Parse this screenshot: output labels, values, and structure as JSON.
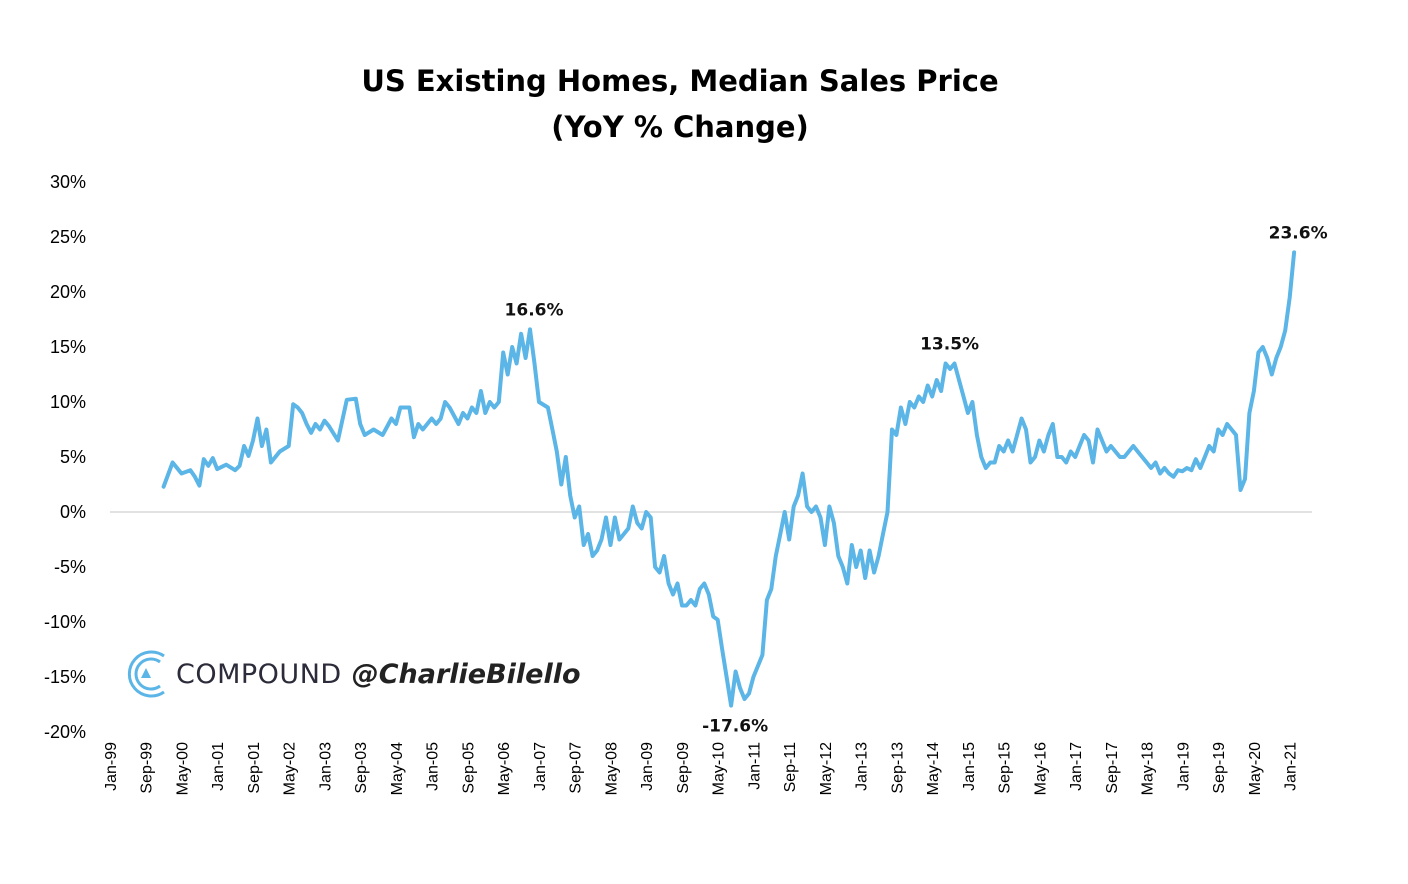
{
  "chart_data": {
    "type": "line",
    "title": "US Existing Homes, Median Sales Price",
    "subtitle": "(YoY % Change)",
    "ylim": [
      -20,
      30
    ],
    "yticks": [
      "30%",
      "25%",
      "20%",
      "15%",
      "10%",
      "5%",
      "0%",
      "-5%",
      "-10%",
      "-15%",
      "-20%"
    ],
    "ytick_values": [
      30,
      25,
      20,
      15,
      10,
      5,
      0,
      -5,
      -10,
      -15,
      -20
    ],
    "xticks": [
      "Jan-99",
      "Sep-99",
      "May-00",
      "Jan-01",
      "Sep-01",
      "May-02",
      "Jan-03",
      "Sep-03",
      "May-04",
      "Jan-05",
      "Sep-05",
      "May-06",
      "Jan-07",
      "Sep-07",
      "May-08",
      "Jan-09",
      "Sep-09",
      "May-10",
      "Jan-11",
      "Sep-11",
      "May-12",
      "Jan-13",
      "Sep-13",
      "May-14",
      "Jan-15",
      "Sep-15",
      "May-16",
      "Jan-17",
      "Sep-17",
      "May-18",
      "Jan-19",
      "Sep-19",
      "May-20",
      "Jan-21"
    ],
    "x_range": [
      "Jan-99",
      "Jun-21"
    ],
    "grid": false,
    "zero_line": true,
    "line_color": "#5bb5e6",
    "series": [
      {
        "points": [
          [
            "Jan-00",
            2.3
          ],
          [
            "Mar-00",
            4.5
          ],
          [
            "May-00",
            3.5
          ],
          [
            "Jul-00",
            3.8
          ],
          [
            "Aug-00",
            3.2
          ],
          [
            "Sep-00",
            2.4
          ],
          [
            "Oct-00",
            4.8
          ],
          [
            "Nov-00",
            4.2
          ],
          [
            "Dec-00",
            4.9
          ],
          [
            "Jan-01",
            3.9
          ],
          [
            "Mar-01",
            4.3
          ],
          [
            "May-01",
            3.8
          ],
          [
            "Jun-01",
            4.2
          ],
          [
            "Jul-01",
            6.0
          ],
          [
            "Aug-01",
            5.1
          ],
          [
            "Sep-01",
            6.5
          ],
          [
            "Oct-01",
            8.5
          ],
          [
            "Nov-01",
            6.0
          ],
          [
            "Dec-01",
            7.5
          ],
          [
            "Jan-02",
            4.5
          ],
          [
            "Mar-02",
            5.5
          ],
          [
            "May-02",
            6.0
          ],
          [
            "Jun-02",
            9.8
          ],
          [
            "Jul-02",
            9.5
          ],
          [
            "Aug-02",
            9.0
          ],
          [
            "Sep-02",
            8.0
          ],
          [
            "Oct-02",
            7.2
          ],
          [
            "Nov-02",
            8.0
          ],
          [
            "Dec-02",
            7.5
          ],
          [
            "Jan-03",
            8.3
          ],
          [
            "Feb-03",
            7.8
          ],
          [
            "Apr-03",
            6.5
          ],
          [
            "Jun-03",
            10.2
          ],
          [
            "Aug-03",
            10.3
          ],
          [
            "Sep-03",
            8.0
          ],
          [
            "Oct-03",
            7.0
          ],
          [
            "Dec-03",
            7.5
          ],
          [
            "Feb-04",
            7.0
          ],
          [
            "Apr-04",
            8.5
          ],
          [
            "May-04",
            8.0
          ],
          [
            "Jun-04",
            9.5
          ],
          [
            "Aug-04",
            9.5
          ],
          [
            "Sep-04",
            6.8
          ],
          [
            "Oct-04",
            8.0
          ],
          [
            "Nov-04",
            7.5
          ],
          [
            "Jan-05",
            8.5
          ],
          [
            "Feb-05",
            8.0
          ],
          [
            "Mar-05",
            8.5
          ],
          [
            "Apr-05",
            10.0
          ],
          [
            "May-05",
            9.5
          ],
          [
            "Jul-05",
            8.0
          ],
          [
            "Aug-05",
            9.0
          ],
          [
            "Sep-05",
            8.5
          ],
          [
            "Oct-05",
            9.5
          ],
          [
            "Nov-05",
            9.0
          ],
          [
            "Dec-05",
            11.0
          ],
          [
            "Jan-06",
            9.0
          ],
          [
            "Feb-06",
            10.0
          ],
          [
            "Mar-06",
            9.5
          ],
          [
            "Apr-06",
            10.0
          ],
          [
            "May-06",
            14.5
          ],
          [
            "Jun-06",
            12.5
          ],
          [
            "Jul-06",
            15.0
          ],
          [
            "Aug-06",
            13.5
          ],
          [
            "Sep-06",
            16.2
          ],
          [
            "Oct-06",
            14.0
          ],
          [
            "Nov-06",
            16.6
          ],
          [
            "Dec-06",
            13.5
          ],
          [
            "Jan-07",
            10.0
          ],
          [
            "Mar-07",
            9.5
          ],
          [
            "Apr-07",
            7.5
          ],
          [
            "May-07",
            5.5
          ],
          [
            "Jun-07",
            2.5
          ],
          [
            "Jul-07",
            5.0
          ],
          [
            "Aug-07",
            1.5
          ],
          [
            "Sep-07",
            -0.5
          ],
          [
            "Oct-07",
            0.5
          ],
          [
            "Nov-07",
            -3.0
          ],
          [
            "Dec-07",
            -2.0
          ],
          [
            "Jan-08",
            -4.0
          ],
          [
            "Feb-08",
            -3.5
          ],
          [
            "Mar-08",
            -2.5
          ],
          [
            "Apr-08",
            -0.5
          ],
          [
            "May-08",
            -3.0
          ],
          [
            "Jun-08",
            -0.5
          ],
          [
            "Jul-08",
            -2.5
          ],
          [
            "Aug-08",
            -2.0
          ],
          [
            "Sep-08",
            -1.5
          ],
          [
            "Oct-08",
            0.5
          ],
          [
            "Nov-08",
            -1.0
          ],
          [
            "Dec-08",
            -1.5
          ],
          [
            "Jan-09",
            0.0
          ],
          [
            "Feb-09",
            -0.5
          ],
          [
            "Mar-09",
            -5.0
          ],
          [
            "Apr-09",
            -5.5
          ],
          [
            "May-09",
            -4.0
          ],
          [
            "Jun-09",
            -6.5
          ],
          [
            "Jul-09",
            -7.5
          ],
          [
            "Aug-09",
            -6.5
          ],
          [
            "Sep-09",
            -8.5
          ],
          [
            "Oct-09",
            -8.5
          ],
          [
            "Nov-09",
            -8.0
          ],
          [
            "Dec-09",
            -8.5
          ],
          [
            "Jan-10",
            -7.0
          ],
          [
            "Feb-10",
            -6.5
          ],
          [
            "Mar-10",
            -7.5
          ],
          [
            "Apr-10",
            -9.5
          ],
          [
            "May-10",
            -9.8
          ],
          [
            "Jun-10",
            -12.5
          ],
          [
            "Jul-10",
            -15.0
          ],
          [
            "Aug-10",
            -17.6
          ],
          [
            "Sep-10",
            -14.5
          ],
          [
            "Oct-10",
            -16.0
          ],
          [
            "Nov-10",
            -17.0
          ],
          [
            "Dec-10",
            -16.5
          ],
          [
            "Jan-11",
            -15.0
          ],
          [
            "Feb-11",
            -14.0
          ],
          [
            "Mar-11",
            -13.0
          ],
          [
            "Apr-11",
            -8.0
          ],
          [
            "May-11",
            -7.0
          ],
          [
            "Jun-11",
            -4.0
          ],
          [
            "Jul-11",
            -2.0
          ],
          [
            "Aug-11",
            0.0
          ],
          [
            "Sep-11",
            -2.5
          ],
          [
            "Oct-11",
            0.5
          ],
          [
            "Nov-11",
            1.5
          ],
          [
            "Dec-11",
            3.5
          ],
          [
            "Jan-12",
            0.5
          ],
          [
            "Feb-12",
            0.0
          ],
          [
            "Mar-12",
            0.5
          ],
          [
            "Apr-12",
            -0.5
          ],
          [
            "May-12",
            -3.0
          ],
          [
            "Jun-12",
            0.5
          ],
          [
            "Jul-12",
            -1.0
          ],
          [
            "Aug-12",
            -4.0
          ],
          [
            "Sep-12",
            -5.0
          ],
          [
            "Oct-12",
            -6.5
          ],
          [
            "Nov-12",
            -3.0
          ],
          [
            "Dec-12",
            -5.0
          ],
          [
            "Jan-13",
            -3.5
          ],
          [
            "Feb-13",
            -6.0
          ],
          [
            "Mar-13",
            -3.5
          ],
          [
            "Apr-13",
            -5.5
          ],
          [
            "May-13",
            -4.0
          ],
          [
            "Jun-13",
            -2.0
          ],
          [
            "Jul-13",
            0.0
          ],
          [
            "Aug-13",
            7.5
          ],
          [
            "Sep-13",
            7.0
          ],
          [
            "Oct-13",
            9.5
          ],
          [
            "Nov-13",
            8.0
          ],
          [
            "Dec-13",
            10.0
          ],
          [
            "Jan-14",
            9.5
          ],
          [
            "Feb-14",
            10.5
          ],
          [
            "Mar-14",
            10.0
          ],
          [
            "Apr-14",
            11.5
          ],
          [
            "May-14",
            10.5
          ],
          [
            "Jun-14",
            12.0
          ],
          [
            "Jul-14",
            11.0
          ],
          [
            "Aug-14",
            13.5
          ],
          [
            "Sep-14",
            13.0
          ],
          [
            "Oct-14",
            13.5
          ],
          [
            "Nov-14",
            12.0
          ],
          [
            "Dec-14",
            10.5
          ],
          [
            "Jan-15",
            9.0
          ],
          [
            "Feb-15",
            10.0
          ],
          [
            "Mar-15",
            7.0
          ],
          [
            "Apr-15",
            5.0
          ],
          [
            "May-15",
            4.0
          ],
          [
            "Jun-15",
            4.5
          ],
          [
            "Jul-15",
            4.5
          ],
          [
            "Aug-15",
            6.0
          ],
          [
            "Sep-15",
            5.5
          ],
          [
            "Oct-15",
            6.5
          ],
          [
            "Nov-15",
            5.5
          ],
          [
            "Dec-15",
            7.0
          ],
          [
            "Jan-16",
            8.5
          ],
          [
            "Feb-16",
            7.5
          ],
          [
            "Mar-16",
            4.5
          ],
          [
            "Apr-16",
            5.0
          ],
          [
            "May-16",
            6.5
          ],
          [
            "Jun-16",
            5.5
          ],
          [
            "Jul-16",
            7.0
          ],
          [
            "Aug-16",
            8.0
          ],
          [
            "Sep-16",
            5.0
          ],
          [
            "Oct-16",
            5.0
          ],
          [
            "Nov-16",
            4.5
          ],
          [
            "Dec-16",
            5.5
          ],
          [
            "Jan-17",
            5.0
          ],
          [
            "Feb-17",
            6.0
          ],
          [
            "Mar-17",
            7.0
          ],
          [
            "Apr-17",
            6.5
          ],
          [
            "May-17",
            4.5
          ],
          [
            "Jun-17",
            7.5
          ],
          [
            "Jul-17",
            6.5
          ],
          [
            "Aug-17",
            5.5
          ],
          [
            "Sep-17",
            6.0
          ],
          [
            "Oct-17",
            5.5
          ],
          [
            "Nov-17",
            5.0
          ],
          [
            "Dec-17",
            5.0
          ],
          [
            "Jan-18",
            5.5
          ],
          [
            "Feb-18",
            6.0
          ],
          [
            "Mar-18",
            5.5
          ],
          [
            "Apr-18",
            5.0
          ],
          [
            "May-18",
            4.5
          ],
          [
            "Jun-18",
            4.0
          ],
          [
            "Jul-18",
            4.5
          ],
          [
            "Aug-18",
            3.5
          ],
          [
            "Sep-18",
            4.0
          ],
          [
            "Oct-18",
            3.5
          ],
          [
            "Nov-18",
            3.2
          ],
          [
            "Dec-18",
            3.8
          ],
          [
            "Jan-19",
            3.7
          ],
          [
            "Feb-19",
            4.0
          ],
          [
            "Mar-19",
            3.8
          ],
          [
            "Apr-19",
            4.8
          ],
          [
            "May-19",
            4.0
          ],
          [
            "Jun-19",
            5.0
          ],
          [
            "Jul-19",
            6.0
          ],
          [
            "Aug-19",
            5.5
          ],
          [
            "Sep-19",
            7.5
          ],
          [
            "Oct-19",
            7.0
          ],
          [
            "Nov-19",
            8.0
          ],
          [
            "Dec-19",
            7.5
          ],
          [
            "Jan-20",
            7.0
          ],
          [
            "Feb-20",
            2.0
          ],
          [
            "Mar-20",
            3.0
          ],
          [
            "Apr-20",
            9.0
          ],
          [
            "May-20",
            11.0
          ],
          [
            "Jun-20",
            14.5
          ],
          [
            "Jul-20",
            15.0
          ],
          [
            "Aug-20",
            14.0
          ],
          [
            "Sep-20",
            12.5
          ],
          [
            "Oct-20",
            14.0
          ],
          [
            "Nov-20",
            15.0
          ],
          [
            "Dec-20",
            16.5
          ],
          [
            "Jan-21",
            19.5
          ],
          [
            "Feb-21",
            23.6
          ]
        ]
      }
    ],
    "annotations": [
      {
        "text": "16.6%",
        "x": "Nov-06",
        "y": 16.6,
        "position": "above"
      },
      {
        "text": "-17.6%",
        "x": "Aug-10",
        "y": -17.6,
        "position": "below"
      },
      {
        "text": "13.5%",
        "x": "Aug-14",
        "y": 13.5,
        "position": "above"
      },
      {
        "text": "23.6%",
        "x": "Feb-21",
        "y": 23.6,
        "position": "above"
      }
    ]
  },
  "watermark": {
    "logo": "compound-c-logo-icon",
    "brand": "COMPOUND",
    "handle": "@CharlieBilello"
  }
}
